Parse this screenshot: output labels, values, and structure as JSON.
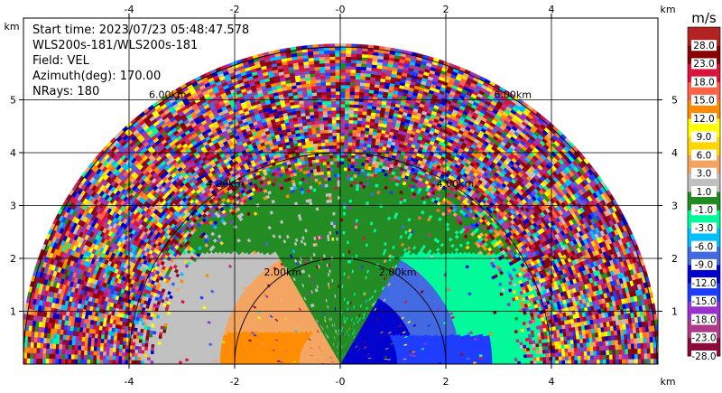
{
  "header": {
    "start_time": "Start time: 2023/07/23 05:48:47.578",
    "instrument": "WLS200s-181/WLS200s-181",
    "field": "Field: VEL",
    "azimuth": "Azimuth(deg): 170.00",
    "nrays": "NRays: 180"
  },
  "chart_data": {
    "type": "heatmap",
    "description_field": "VEL",
    "x_unit": "km",
    "y_unit": "km",
    "xlim": [
      -5.9,
      6.0
    ],
    "ylim": [
      0,
      5.9
    ],
    "x_ticks": [
      -4,
      -2,
      0,
      2,
      4
    ],
    "y_ticks": [
      1,
      2,
      3,
      4,
      5
    ],
    "range_rings_km": [
      2,
      4,
      6
    ],
    "range_ring_labels": [
      "2.00km",
      "4.00km",
      "6.00km"
    ],
    "max_range_km": 6,
    "grid": true,
    "colorbar": {
      "unit": "m/s",
      "tick_labels": [
        "-28.0",
        "-23.0",
        "-18.0",
        "-15.0",
        "-12.0",
        "-9.0",
        "-6.0",
        "-3.0",
        "-1.0",
        "1.0",
        "3.0",
        "6.0",
        "9.0",
        "12.0",
        "15.0",
        "18.0",
        "23.0",
        "28.0"
      ],
      "colors": [
        "#8b0a3a",
        "#b03a8a",
        "#9932cc",
        "#1e3cff",
        "#0000cd",
        "#4169e1",
        "#00bfff",
        "#00fa9a",
        "#228b22",
        "#c0c0c0",
        "#f4a460",
        "#ffd700",
        "#ffff00",
        "#ff8c00",
        "#ff6347",
        "#dc143c",
        "#8b0000",
        "#b22222"
      ]
    },
    "regions": [
      {
        "side": "left",
        "range_km": [
          0,
          2.3
        ],
        "value_ms": 4.5
      },
      {
        "side": "left",
        "range_km": [
          2.3,
          3.6
        ],
        "value_ms": 2.0
      },
      {
        "side": "right",
        "range_km": [
          0,
          1.4
        ],
        "value_ms": -10.5
      },
      {
        "side": "right",
        "range_km": [
          1.4,
          2.3
        ],
        "value_ms": -7.5
      },
      {
        "side": "right",
        "range_km": [
          2.3,
          3.2
        ],
        "value_ms": -2.0
      },
      {
        "side": "center",
        "range_km": [
          0,
          3.5
        ],
        "value_ms": 0.0
      },
      {
        "side": "all",
        "range_km": [
          3.6,
          6.0
        ],
        "value_ms": "noise"
      }
    ]
  }
}
